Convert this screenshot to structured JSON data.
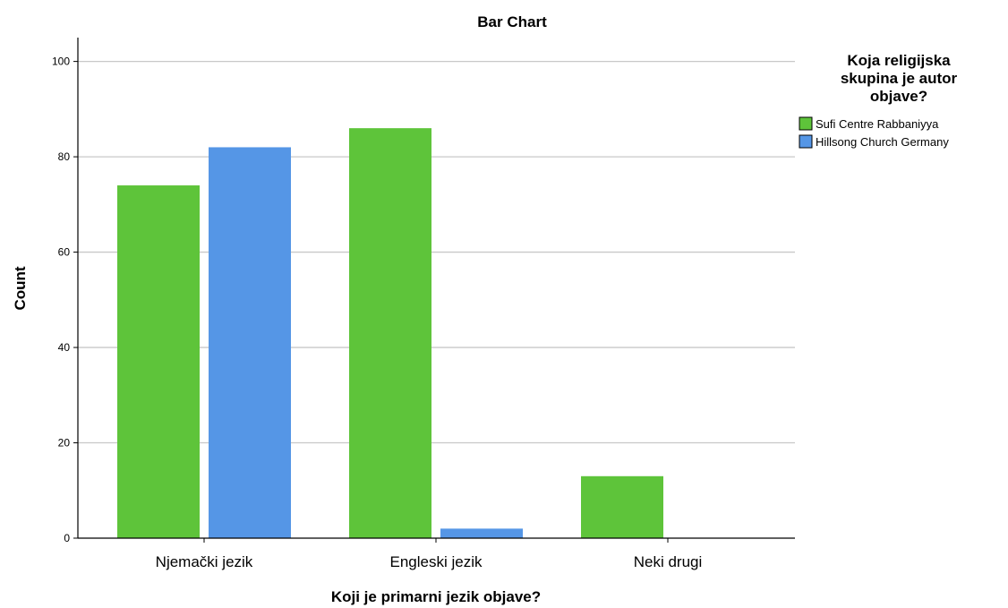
{
  "chart_data": {
    "type": "bar",
    "title": "Bar Chart",
    "xlabel": "Koji je primarni jezik objave?",
    "ylabel": "Count",
    "categories": [
      "Njemački jezik",
      "Engleski jezik",
      "Neki drugi"
    ],
    "series": [
      {
        "name": "Sufi Centre Rabbaniyya",
        "values": [
          74,
          86,
          13
        ],
        "color": "#5ec43a"
      },
      {
        "name": "Hillsong Church Germany",
        "values": [
          82,
          2,
          0
        ],
        "color": "#5596e6"
      }
    ],
    "ylim": [
      0,
      105
    ],
    "yticks": [
      0,
      20,
      40,
      60,
      80,
      100
    ],
    "grid": true,
    "legend": {
      "title_lines": [
        "Koja religijska",
        "skupina je autor",
        "objave?"
      ],
      "placement": "right"
    }
  }
}
